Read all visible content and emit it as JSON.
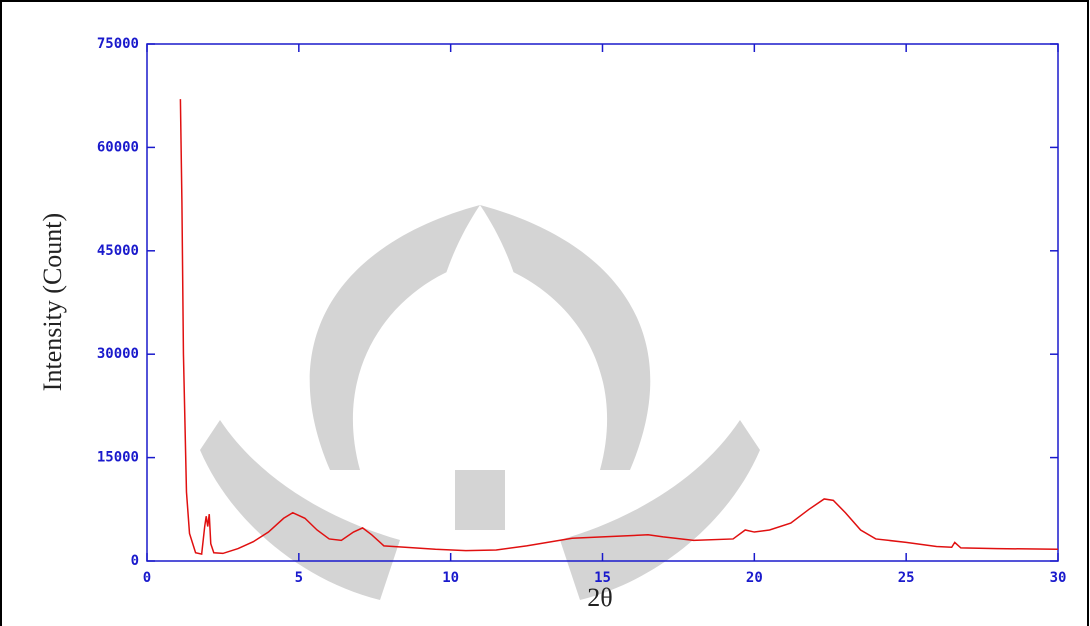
{
  "chart_data": {
    "type": "line",
    "x_label": "2θ",
    "y_label": "Intensity (Count)",
    "xlim": [
      0,
      30
    ],
    "xticks": [
      0,
      5,
      10,
      15,
      20,
      25,
      30
    ],
    "ylim": [
      0,
      75000
    ],
    "yticks": [
      0,
      15000,
      30000,
      45000,
      60000,
      75000
    ],
    "series": [
      {
        "color": "#e01010",
        "x": [
          1.1,
          1.15,
          1.2,
          1.3,
          1.4,
          1.6,
          1.8,
          1.9,
          1.95,
          2.0,
          2.05,
          2.1,
          2.2,
          2.5,
          3,
          3.5,
          4,
          4.5,
          4.8,
          5.2,
          5.6,
          6,
          6.4,
          6.8,
          7.1,
          7.4,
          7.8,
          8.5,
          9.5,
          10.5,
          11.5,
          12.5,
          14,
          15,
          16.5,
          17,
          18,
          19.3,
          19.7,
          20,
          20.5,
          21.2,
          21.8,
          22.3,
          22.6,
          23,
          23.5,
          24,
          25,
          26,
          26.5,
          26.6,
          26.8,
          28,
          30
        ],
        "values": [
          67000,
          52000,
          30000,
          10000,
          4000,
          1200,
          1000,
          5000,
          6500,
          5000,
          6800,
          2500,
          1200,
          1100,
          1800,
          2800,
          4200,
          6200,
          7000,
          6200,
          4500,
          3200,
          3000,
          4200,
          4800,
          3800,
          2200,
          2000,
          1700,
          1500,
          1600,
          2200,
          3300,
          3500,
          3800,
          3500,
          3000,
          3200,
          4500,
          4200,
          4500,
          5500,
          7500,
          9000,
          8800,
          7000,
          4500,
          3200,
          2700,
          2100,
          2000,
          2700,
          1900,
          1800,
          1700
        ]
      }
    ]
  }
}
